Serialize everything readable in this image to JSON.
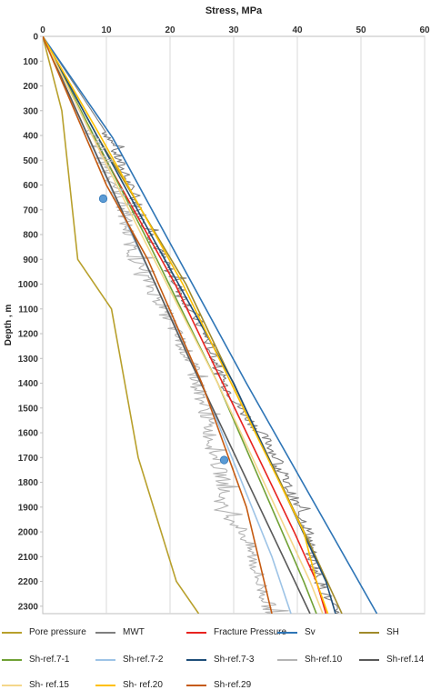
{
  "chart_data": {
    "type": "line",
    "title": "Stress, MPa",
    "xlabel": "Stress, MPa",
    "ylabel": "Depth , m",
    "xlim": [
      0,
      60
    ],
    "ylim": [
      0,
      2330
    ],
    "x_ticks": [
      "0",
      "10",
      "20",
      "30",
      "40",
      "50",
      "60"
    ],
    "y_ticks": [
      "0",
      "100",
      "200",
      "300",
      "400",
      "500",
      "600",
      "700",
      "800",
      "900",
      "1000",
      "1100",
      "1200",
      "1300",
      "1400",
      "1500",
      "1600",
      "1700",
      "1800",
      "1900",
      "2000",
      "2100",
      "2200",
      "2300"
    ],
    "y_inverted": true,
    "grid": "vertical",
    "legend_position": "bottom",
    "series": [
      {
        "name": "Pore pressure",
        "color": "#b8a02c",
        "points": [
          [
            0,
            0
          ],
          [
            3,
            300
          ],
          [
            5.5,
            900
          ],
          [
            10.8,
            1100
          ],
          [
            15,
            1700
          ],
          [
            21,
            2200
          ],
          [
            24.5,
            2330
          ]
        ]
      },
      {
        "name": "MWT",
        "color": "#7f7f7f",
        "points": [
          [
            0,
            0
          ],
          [
            10.5,
            410
          ],
          [
            13.5,
            600
          ],
          [
            17,
            800
          ],
          [
            21,
            1000
          ],
          [
            25.5,
            1200
          ],
          [
            28,
            1380
          ],
          [
            31,
            1500
          ],
          [
            35.8,
            1650
          ],
          [
            38,
            1790
          ],
          [
            40,
            1900
          ],
          [
            41.8,
            2000
          ],
          [
            42.2,
            2100
          ],
          [
            43.5,
            2200
          ],
          [
            46,
            2330
          ]
        ],
        "jagged": 0.9
      },
      {
        "name": "Fracture Pressure",
        "color": "#e8231f",
        "points": [
          [
            0,
            0
          ],
          [
            7.8,
            400
          ],
          [
            20.8,
            1000
          ],
          [
            39.5,
            2000
          ],
          [
            43,
            2200
          ],
          [
            44.5,
            2330
          ]
        ]
      },
      {
        "name": "Sv",
        "color": "#2e75b6",
        "points": [
          [
            0,
            0
          ],
          [
            11,
            410
          ],
          [
            32,
            1400
          ],
          [
            52.5,
            2330
          ]
        ]
      },
      {
        "name": "SH",
        "color": "#a08a2a",
        "points": [
          [
            0,
            0
          ],
          [
            8.5,
            400
          ],
          [
            22.5,
            1000
          ],
          [
            42,
            2050
          ],
          [
            47,
            2330
          ]
        ]
      },
      {
        "name": "Sh-ref.7-1",
        "color": "#70a135",
        "points": [
          [
            0,
            0
          ],
          [
            16,
            800
          ],
          [
            27.5,
            1400
          ],
          [
            41,
            2200
          ],
          [
            43,
            2330
          ]
        ]
      },
      {
        "name": "Sh-ref.7-2",
        "color": "#9dc3e6",
        "points": [
          [
            0,
            0
          ],
          [
            14,
            800
          ],
          [
            25,
            1400
          ],
          [
            36,
            2100
          ],
          [
            39,
            2330
          ]
        ]
      },
      {
        "name": "Sh-ref.7-3",
        "color": "#1f4e79",
        "points": [
          [
            0,
            0
          ],
          [
            17,
            800
          ],
          [
            30,
            1400
          ],
          [
            44.5,
            2200
          ],
          [
            46,
            2330
          ]
        ]
      },
      {
        "name": "Sh-ref.10",
        "color": "#b4b4b4",
        "points": [
          [
            0,
            0
          ],
          [
            11.5,
            600
          ],
          [
            14.5,
            900
          ],
          [
            19,
            1100
          ],
          [
            23,
            1300
          ],
          [
            25.5,
            1500
          ],
          [
            27,
            1700
          ],
          [
            28.5,
            1800
          ],
          [
            28,
            1900
          ],
          [
            31.5,
            2000
          ],
          [
            33,
            2100
          ],
          [
            34,
            2200
          ],
          [
            36,
            2330
          ]
        ],
        "jagged": 1.2
      },
      {
        "name": "Sh-ref.14",
        "color": "#595959",
        "points": [
          [
            0,
            0
          ],
          [
            23,
            1300
          ],
          [
            42,
            2330
          ]
        ]
      },
      {
        "name": "Sh- ref.15",
        "color": "#f4d78a",
        "points": [
          [
            0,
            0
          ],
          [
            15.5,
            800
          ],
          [
            27.5,
            1400
          ],
          [
            42,
            2200
          ],
          [
            44,
            2330
          ]
        ]
      },
      {
        "name": "Sh- ref.20",
        "color": "#ffc000",
        "points": [
          [
            0,
            0
          ],
          [
            9,
            400
          ],
          [
            22,
            1000
          ],
          [
            41,
            2000
          ],
          [
            43,
            2200
          ],
          [
            44.8,
            2330
          ]
        ]
      },
      {
        "name": "Sh-ref.29",
        "color": "#c55a11",
        "points": [
          [
            0,
            0
          ],
          [
            10,
            600
          ],
          [
            16.5,
            900
          ],
          [
            25,
            1400
          ],
          [
            32,
            1900
          ],
          [
            36,
            2330
          ]
        ]
      }
    ],
    "markers": [
      {
        "x": 9.5,
        "y": 655,
        "color": "#5b9bd5"
      },
      {
        "x": 28.5,
        "y": 1710,
        "color": "#5b9bd5"
      }
    ]
  }
}
